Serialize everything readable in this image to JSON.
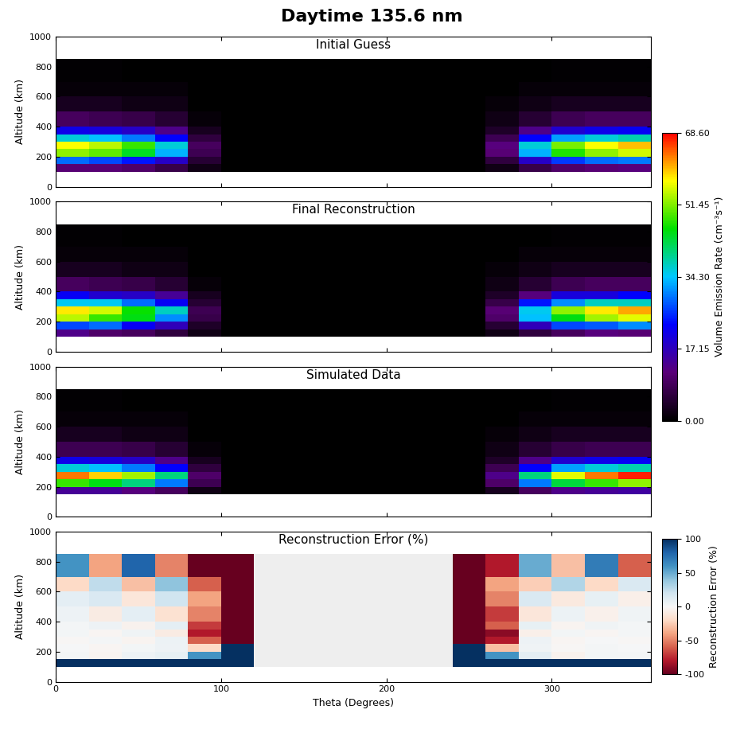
{
  "title": "Daytime 135.6 nm",
  "chart_data": [
    {
      "type": "heatmap",
      "title": "Initial Guess",
      "ylabel": "Altitude (km)",
      "tick_labels": "y",
      "xlim": [
        0,
        360
      ],
      "ylim": [
        0,
        1000
      ],
      "xticks": [
        0,
        100,
        200,
        300
      ],
      "yticks": [
        0,
        200,
        400,
        600,
        800,
        1000
      ],
      "x_edges": [
        0,
        20,
        40,
        60,
        80,
        100,
        120,
        140,
        160,
        180,
        200,
        220,
        240,
        260,
        280,
        300,
        320,
        340,
        360
      ],
      "y_edges": [
        100,
        150,
        200,
        250,
        300,
        350,
        400,
        500,
        600,
        700,
        850
      ],
      "colorbar": {
        "range": [
          0,
          68.6
        ],
        "label": "Volume Emission Rate (cm⁻³s⁻¹)",
        "ticks": [
          {
            "value": 0,
            "label": "0.00"
          },
          {
            "value": 17.15,
            "label": "17.15"
          },
          {
            "value": 34.3,
            "label": "34.30"
          },
          {
            "value": 51.45,
            "label": "51.45"
          },
          {
            "value": 68.6,
            "label": "68.60"
          }
        ]
      },
      "cells": [
        [
          11,
          11,
          10,
          7,
          2,
          0,
          0,
          0,
          0,
          0,
          0,
          0,
          0,
          2,
          7,
          10,
          11,
          12
        ],
        [
          29,
          27,
          24,
          18,
          5,
          0,
          0,
          0,
          0,
          0,
          0,
          0,
          0,
          6,
          18,
          26,
          29,
          30
        ],
        [
          52,
          50,
          44,
          33,
          8,
          0,
          0,
          0,
          0,
          0,
          0,
          0,
          0,
          11,
          33,
          47,
          52,
          55
        ],
        [
          57,
          54,
          48,
          36,
          9,
          0,
          0,
          0,
          0,
          0,
          0,
          0,
          0,
          12,
          36,
          51,
          57,
          60
        ],
        [
          36,
          34,
          30,
          23,
          6,
          0,
          0,
          0,
          0,
          0,
          0,
          0,
          0,
          8,
          23,
          32,
          36,
          38
        ],
        [
          21,
          20,
          18,
          13,
          3,
          0,
          0,
          0,
          0,
          0,
          0,
          0,
          0,
          4,
          13,
          19,
          21,
          22
        ],
        [
          9,
          8,
          7,
          5,
          1,
          0,
          0,
          0,
          0,
          0,
          0,
          0,
          0,
          2,
          5,
          8,
          9,
          9
        ],
        [
          3,
          3,
          2,
          2,
          0,
          0,
          0,
          0,
          0,
          0,
          0,
          0,
          0,
          1,
          2,
          3,
          3,
          3
        ],
        [
          1,
          1,
          1,
          1,
          0,
          0,
          0,
          0,
          0,
          0,
          0,
          0,
          0,
          0,
          1,
          1,
          1,
          1
        ],
        [
          0.3,
          0.3,
          0.2,
          0.2,
          0,
          0,
          0,
          0,
          0,
          0,
          0,
          0,
          0,
          0,
          0.2,
          0.3,
          0.3,
          0.3
        ]
      ]
    },
    {
      "type": "heatmap",
      "title": "Final Reconstruction",
      "ylabel": "Altitude (km)",
      "tick_labels": "y",
      "xlim": [
        0,
        360
      ],
      "ylim": [
        0,
        1000
      ],
      "xticks": [
        0,
        100,
        200,
        300
      ],
      "yticks": [
        0,
        200,
        400,
        600,
        800,
        1000
      ],
      "x_edges": [
        0,
        20,
        40,
        60,
        80,
        100,
        120,
        140,
        160,
        180,
        200,
        220,
        240,
        260,
        280,
        300,
        320,
        340,
        360
      ],
      "y_edges": [
        100,
        150,
        200,
        250,
        300,
        350,
        400,
        500,
        600,
        700,
        850
      ],
      "cells": [
        [
          13,
          10,
          9,
          6,
          2,
          0,
          0,
          0,
          0,
          0,
          0,
          0,
          0,
          2,
          6,
          9,
          12,
          11
        ],
        [
          27,
          29,
          22,
          17,
          4,
          0,
          0,
          0,
          0,
          0,
          0,
          0,
          0,
          5,
          17,
          27,
          28,
          31
        ],
        [
          54,
          48,
          45,
          31,
          7,
          0,
          0,
          0,
          0,
          0,
          0,
          0,
          0,
          10,
          34,
          45,
          53,
          56
        ],
        [
          58,
          55,
          46,
          37,
          8,
          0,
          0,
          0,
          0,
          0,
          0,
          0,
          0,
          11,
          35,
          52,
          58,
          61
        ],
        [
          35,
          35,
          29,
          22,
          5,
          0,
          0,
          0,
          0,
          0,
          0,
          0,
          0,
          7,
          24,
          31,
          37,
          37
        ],
        [
          22,
          19,
          18,
          14,
          3,
          0,
          0,
          0,
          0,
          0,
          0,
          0,
          0,
          4,
          12,
          20,
          20,
          23
        ],
        [
          9,
          8,
          7,
          5,
          1,
          0,
          0,
          0,
          0,
          0,
          0,
          0,
          0,
          2,
          5,
          8,
          9,
          9
        ],
        [
          3,
          3,
          2,
          2,
          0,
          0,
          0,
          0,
          0,
          0,
          0,
          0,
          0,
          1,
          2,
          3,
          3,
          3
        ],
        [
          1,
          1,
          1,
          1,
          0,
          0,
          0,
          0,
          0,
          0,
          0,
          0,
          0,
          0,
          1,
          1,
          1,
          1
        ],
        [
          0.3,
          0.3,
          0.2,
          0.2,
          0,
          0,
          0,
          0,
          0,
          0,
          0,
          0,
          0,
          0,
          0.2,
          0.3,
          0.3,
          0.3
        ]
      ]
    },
    {
      "type": "heatmap",
      "title": "Simulated Data",
      "ylabel": "Altitude (km)",
      "tick_labels": "y",
      "xlim": [
        0,
        360
      ],
      "ylim": [
        0,
        1000
      ],
      "xticks": [
        0,
        100,
        200,
        300
      ],
      "yticks": [
        0,
        200,
        400,
        600,
        800,
        1000
      ],
      "x_edges": [
        0,
        20,
        40,
        60,
        80,
        100,
        120,
        140,
        160,
        180,
        200,
        220,
        240,
        260,
        280,
        300,
        320,
        340,
        360
      ],
      "y_edges": [
        100,
        150,
        200,
        250,
        300,
        350,
        400,
        500,
        600,
        700,
        850
      ],
      "cells": [
        [
          null,
          null,
          null,
          null,
          null,
          null,
          null,
          null,
          null,
          null,
          null,
          null,
          null,
          null,
          null,
          null,
          null,
          null
        ],
        [
          14,
          14,
          12,
          9,
          2,
          0,
          0,
          0,
          0,
          0,
          0,
          0,
          0,
          3,
          9,
          13,
          14,
          15
        ],
        [
          48,
          45,
          40,
          30,
          8,
          0,
          0,
          0,
          0,
          0,
          0,
          0,
          0,
          10,
          30,
          43,
          48,
          52
        ],
        [
          63,
          59,
          53,
          40,
          10,
          0,
          0,
          0,
          0,
          0,
          0,
          0,
          0,
          13,
          40,
          56,
          63,
          67
        ],
        [
          36,
          34,
          30,
          23,
          6,
          0,
          0,
          0,
          0,
          0,
          0,
          0,
          0,
          8,
          23,
          32,
          36,
          38
        ],
        [
          21,
          20,
          18,
          13,
          3,
          0,
          0,
          0,
          0,
          0,
          0,
          0,
          0,
          4,
          13,
          19,
          21,
          22
        ],
        [
          8,
          8,
          7,
          5,
          1,
          0,
          0,
          0,
          0,
          0,
          0,
          0,
          0,
          2,
          5,
          7,
          8,
          8
        ],
        [
          3,
          3,
          2,
          2,
          0,
          0,
          0,
          0,
          0,
          0,
          0,
          0,
          0,
          1,
          2,
          3,
          3,
          3
        ],
        [
          1,
          1,
          1,
          1,
          0,
          0,
          0,
          0,
          0,
          0,
          0,
          0,
          0,
          0,
          1,
          1,
          1,
          1
        ],
        [
          0.3,
          0.3,
          0.2,
          0.2,
          0,
          0,
          0,
          0,
          0,
          0,
          0,
          0,
          0,
          0,
          0.2,
          0.3,
          0.3,
          0.3
        ]
      ]
    },
    {
      "type": "heatmap",
      "title": "Reconstruction Error (%)",
      "ylabel": "Altitude (km)",
      "xlabel": "Theta (Degrees)",
      "xlim": [
        0,
        360
      ],
      "ylim": [
        0,
        1000
      ],
      "xticks": [
        0,
        100,
        200,
        300
      ],
      "yticks": [
        0,
        200,
        400,
        600,
        800,
        1000
      ],
      "x_edges": [
        0,
        20,
        40,
        60,
        80,
        100,
        120,
        140,
        160,
        180,
        200,
        220,
        240,
        260,
        280,
        300,
        320,
        340,
        360
      ],
      "y_edges": [
        100,
        150,
        200,
        250,
        300,
        350,
        400,
        500,
        600,
        700,
        850
      ],
      "colorbar": {
        "range": [
          -100,
          100
        ],
        "label": "Reconstruction Error (%)",
        "ticks": [
          -100,
          -50,
          0,
          50,
          100
        ]
      },
      "cells": [
        [
          100,
          100,
          100,
          100,
          100,
          100,
          null,
          null,
          null,
          null,
          null,
          null,
          100,
          100,
          100,
          100,
          100,
          100
        ],
        [
          2,
          -3,
          5,
          8,
          60,
          100,
          null,
          null,
          null,
          null,
          null,
          null,
          100,
          60,
          10,
          -4,
          3,
          2
        ],
        [
          1,
          -2,
          3,
          5,
          -20,
          100,
          null,
          null,
          null,
          null,
          null,
          null,
          100,
          -30,
          4,
          -1,
          2,
          1
        ],
        [
          -1,
          2,
          -3,
          6,
          -60,
          -100,
          null,
          null,
          null,
          null,
          null,
          null,
          -100,
          -80,
          5,
          -2,
          1,
          -1
        ],
        [
          3,
          -2,
          4,
          -8,
          -80,
          -100,
          null,
          null,
          null,
          null,
          null,
          null,
          -100,
          -90,
          -6,
          3,
          -2,
          2
        ],
        [
          2,
          5,
          -4,
          10,
          -70,
          -100,
          null,
          null,
          null,
          null,
          null,
          null,
          -100,
          -60,
          8,
          -3,
          4,
          2
        ],
        [
          5,
          -8,
          10,
          -15,
          -50,
          -100,
          null,
          null,
          null,
          null,
          null,
          null,
          -100,
          -70,
          -12,
          6,
          -5,
          4
        ],
        [
          10,
          15,
          -12,
          20,
          -40,
          -100,
          null,
          null,
          null,
          null,
          null,
          null,
          -100,
          -50,
          15,
          -10,
          8,
          -6
        ],
        [
          -20,
          25,
          -30,
          40,
          -60,
          -100,
          null,
          null,
          null,
          null,
          null,
          null,
          -100,
          -40,
          -25,
          30,
          -20,
          15
        ],
        [
          60,
          -40,
          80,
          -50,
          -100,
          -100,
          null,
          null,
          null,
          null,
          null,
          null,
          -100,
          -80,
          50,
          -30,
          70,
          -60
        ]
      ]
    }
  ]
}
